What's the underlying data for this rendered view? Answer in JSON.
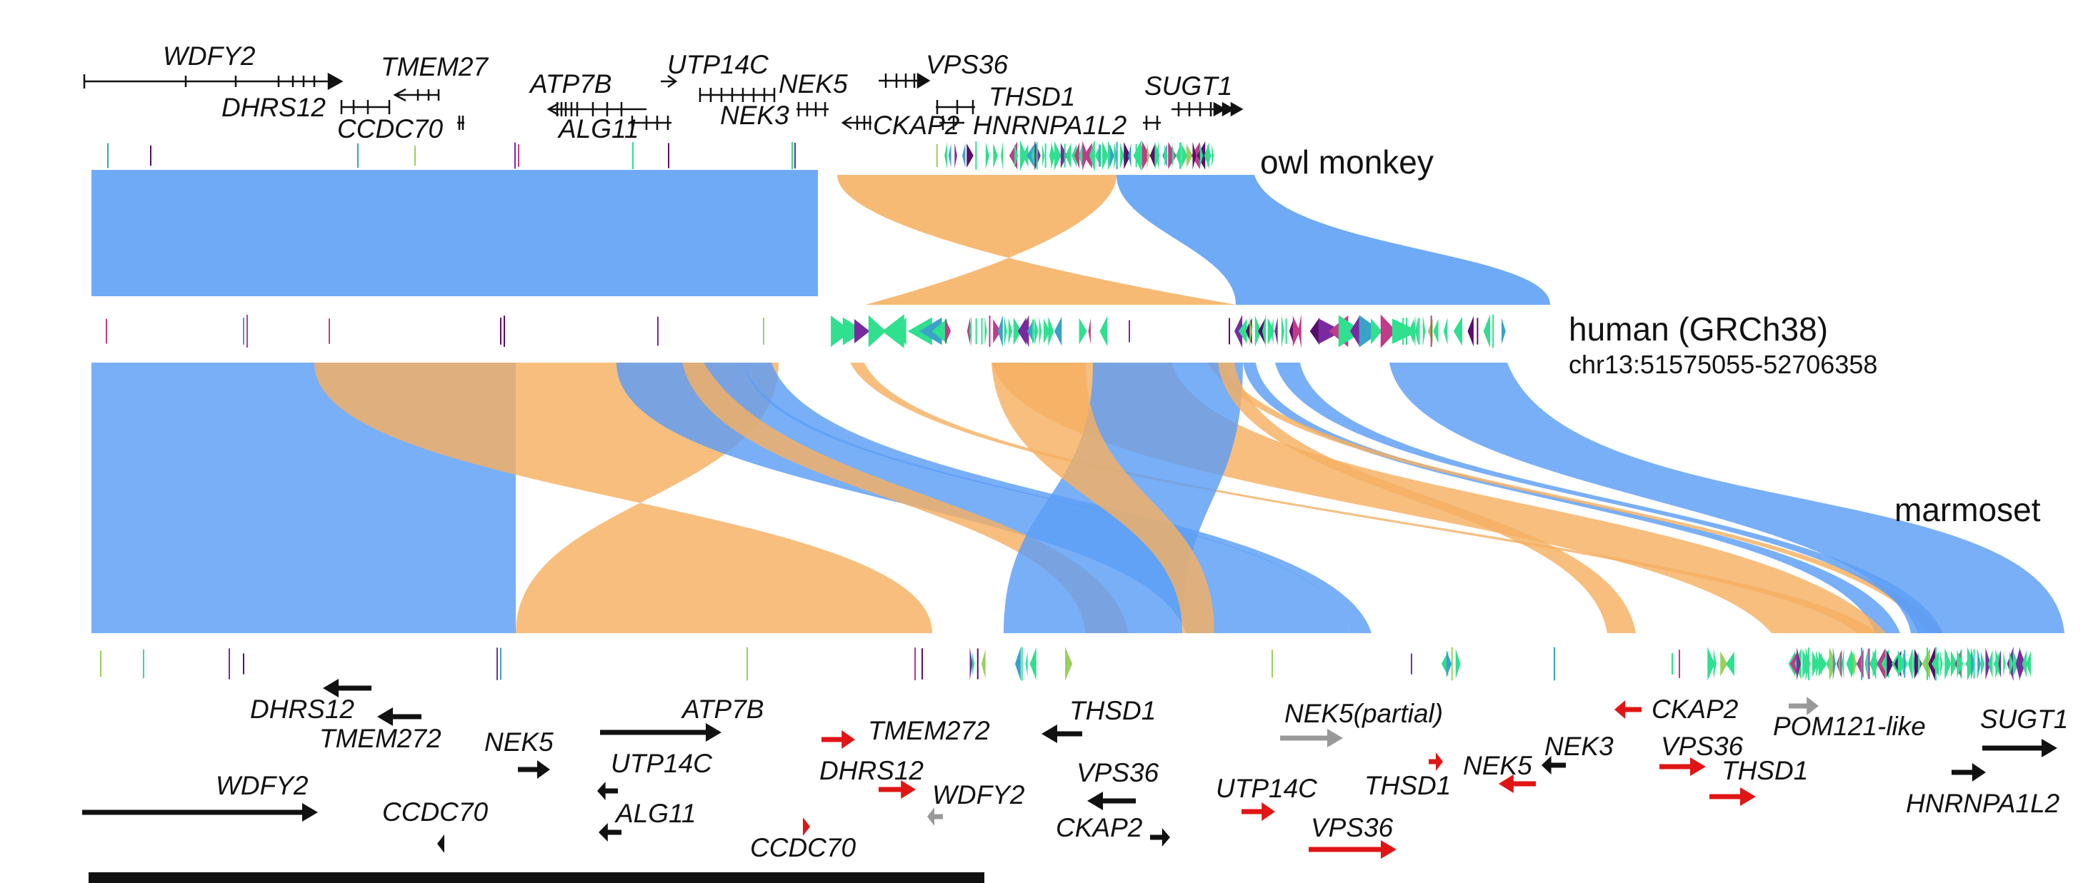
{
  "colors": {
    "same_strand": "#5b9ef5",
    "inverted": "#f5b062",
    "ribbon_opacity": 0.88,
    "arrow_black": "#111111",
    "arrow_red": "#e01515",
    "arrow_gray": "#999999",
    "repeat_green": "#2fe08f",
    "repeat_purple": "#5a0e6b"
  },
  "species": {
    "owl_monkey": "owl monkey",
    "human": "human (GRCh38)",
    "human_region": "chr13:51575055-52706358",
    "marmoset": "marmoset"
  },
  "top_genes": [
    {
      "name": "WDFY2"
    },
    {
      "name": "TMEM27"
    },
    {
      "name": "DHRS12"
    },
    {
      "name": "CCDC70"
    },
    {
      "name": "ATP7B"
    },
    {
      "name": "ALG11"
    },
    {
      "name": "UTP14C"
    },
    {
      "name": "NEK5"
    },
    {
      "name": "NEK3"
    },
    {
      "name": "VPS36"
    },
    {
      "name": "CKAP2"
    },
    {
      "name": "THSD1"
    },
    {
      "name": "HNRNPA1L2"
    },
    {
      "name": "SUGT1"
    }
  ],
  "bottom_genes": [
    {
      "name": "DHRS12",
      "color": "black"
    },
    {
      "name": "TMEM272",
      "color": "black"
    },
    {
      "name": "NEK5",
      "color": "black"
    },
    {
      "name": "ATP7B",
      "color": "black"
    },
    {
      "name": "UTP14C",
      "color": "black"
    },
    {
      "name": "ALG11",
      "color": "black"
    },
    {
      "name": "WDFY2",
      "color": "black"
    },
    {
      "name": "CCDC70",
      "color": "black"
    },
    {
      "name": "TMEM272",
      "color": "red"
    },
    {
      "name": "DHRS12",
      "color": "red"
    },
    {
      "name": "WDFY2",
      "color": "gray"
    },
    {
      "name": "CCDC70",
      "color": "red"
    },
    {
      "name": "THSD1",
      "color": "black"
    },
    {
      "name": "VPS36",
      "color": "black"
    },
    {
      "name": "CKAP2",
      "color": "black"
    },
    {
      "name": "NEK5(partial)",
      "color": "gray"
    },
    {
      "name": "UTP14C",
      "color": "red"
    },
    {
      "name": "VPS36",
      "color": "red"
    },
    {
      "name": "THSD1",
      "color": "red"
    },
    {
      "name": "NEK5",
      "color": "red"
    },
    {
      "name": "NEK3",
      "color": "black"
    },
    {
      "name": "CKAP2",
      "color": "red"
    },
    {
      "name": "VPS36",
      "color": "red"
    },
    {
      "name": "THSD1",
      "color": "red"
    },
    {
      "name": "POM121-like",
      "color": "gray"
    },
    {
      "name": "SUGT1",
      "color": "black"
    },
    {
      "name": "HNRNPA1L2",
      "color": "black"
    }
  ]
}
